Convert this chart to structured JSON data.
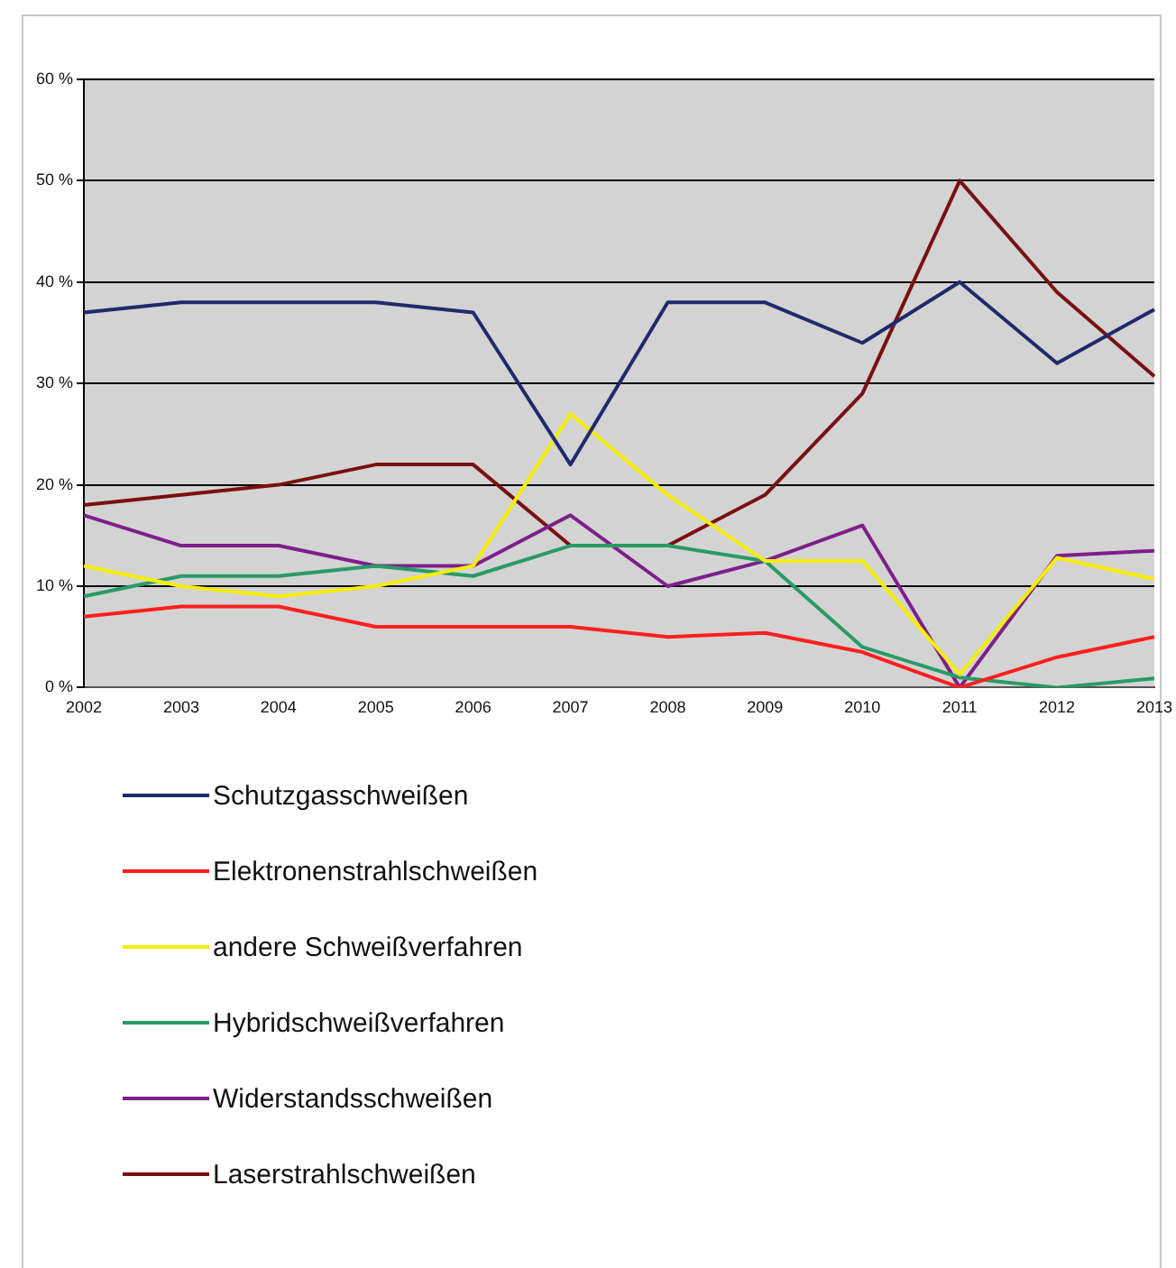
{
  "chart_data": {
    "type": "line",
    "categories": [
      "2002",
      "2003",
      "2004",
      "2005",
      "2006",
      "2007",
      "2008",
      "2009",
      "2010",
      "2011",
      "2012",
      "2013"
    ],
    "series": [
      {
        "name": "Schutzgasschweißen",
        "color": "#1f2a6b",
        "values": [
          37,
          38,
          38,
          38,
          37,
          22,
          38,
          38,
          34,
          40,
          32,
          37.3
        ]
      },
      {
        "name": "Elektronenstrahlschweißen",
        "color": "#ff2020",
        "values": [
          7,
          8,
          8,
          6,
          6,
          6,
          5,
          5.4,
          3.5,
          0,
          3,
          5
        ]
      },
      {
        "name": "andere Schweißverfahren",
        "color": "#f5ee00",
        "values": [
          12,
          10,
          9,
          10,
          12,
          27,
          19,
          12.5,
          12.5,
          1.3,
          12.8,
          10.7
        ]
      },
      {
        "name": "Hybridschweißverfahren",
        "color": "#2a9a66",
        "values": [
          9,
          11,
          11,
          12,
          11,
          14,
          14,
          12.5,
          4,
          1,
          0,
          0.9
        ]
      },
      {
        "name": "Widerstandsschweißen",
        "color": "#7d1f8a",
        "values": [
          17,
          14,
          14,
          12,
          12,
          17,
          10,
          12.5,
          16,
          0,
          13,
          13.5
        ]
      },
      {
        "name": "Laserstrahlschweißen",
        "color": "#7a1010",
        "values": [
          18,
          19,
          20,
          22,
          22,
          14,
          14,
          19,
          29,
          50,
          39,
          30.7
        ]
      }
    ],
    "ylim": [
      0,
      60
    ],
    "yticks": [
      {
        "value": 0,
        "label": "0 %"
      },
      {
        "value": 10,
        "label": "10 %"
      },
      {
        "value": 20,
        "label": "20 %"
      },
      {
        "value": 30,
        "label": "30 %"
      },
      {
        "value": 40,
        "label": "40 %"
      },
      {
        "value": 50,
        "label": "50 %"
      },
      {
        "value": 60,
        "label": "60 %"
      }
    ],
    "grid": "y",
    "legend": "bottom",
    "marker": "none",
    "line_style": "solid"
  }
}
